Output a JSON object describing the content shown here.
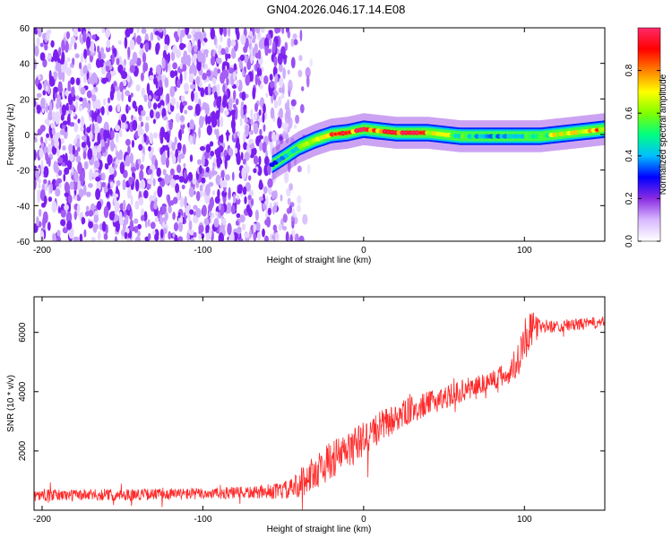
{
  "title": "GN04.2026.046.17.14.E08",
  "chart_data": [
    {
      "type": "heatmap",
      "xlabel": "Height of straight line (km)",
      "ylabel": "Frequency (Hz)",
      "xlim": [
        -205,
        150
      ],
      "ylim": [
        -60,
        60
      ],
      "xticks": [
        -200,
        -100,
        0,
        100
      ],
      "yticks": [
        -60,
        -40,
        -20,
        0,
        20,
        40,
        60
      ],
      "colorbar": {
        "label": "Normalized spectral amplitude",
        "range": [
          0,
          1
        ],
        "ticks": [
          0.0,
          0.2,
          0.4,
          0.6,
          0.8
        ],
        "colormap": [
          "#ffffff",
          "#d8b8ff",
          "#8a2be2",
          "#0000ff",
          "#00bfff",
          "#00ff80",
          "#80ff00",
          "#ffff00",
          "#ff8000",
          "#ff0000",
          "#ff2a6a"
        ]
      },
      "noise_region": {
        "x_start": -205,
        "x_end": -55,
        "fade_to_x": -30
      },
      "ridge": {
        "x": [
          -57,
          -50,
          -40,
          -30,
          -20,
          -10,
          0,
          10,
          20,
          30,
          40,
          50,
          60,
          70,
          80,
          90,
          100,
          110,
          120,
          130,
          140,
          150
        ],
        "freq": [
          -17,
          -13,
          -7,
          -3,
          0,
          1,
          3,
          2,
          1,
          1,
          1,
          0,
          -1,
          -1,
          -1,
          -1,
          -1,
          -1,
          0,
          1,
          2,
          3
        ],
        "amplitude": [
          0.35,
          0.45,
          0.55,
          0.7,
          0.85,
          0.9,
          0.95,
          0.85,
          0.95,
          0.9,
          0.8,
          0.7,
          0.55,
          0.45,
          0.45,
          0.45,
          0.5,
          0.55,
          0.7,
          0.85,
          0.8,
          0.75
        ]
      }
    },
    {
      "type": "line",
      "xlabel": "Height of straight line (km)",
      "ylabel": "SNR (10 * v/v)",
      "xlim": [
        -205,
        150
      ],
      "ylim": [
        0,
        7200
      ],
      "xticks": [
        -200,
        -100,
        0,
        100
      ],
      "yticks": [
        2000,
        4000,
        6000
      ],
      "series": [
        {
          "name": "SNR",
          "color": "#ff2a2a",
          "x": [
            -205,
            -150,
            -100,
            -60,
            -45,
            -40,
            -30,
            -20,
            -10,
            0,
            10,
            20,
            30,
            40,
            50,
            60,
            70,
            80,
            90,
            95,
            100,
            105,
            110,
            120,
            130,
            140,
            150
          ],
          "y": [
            500,
            520,
            560,
            600,
            700,
            900,
            1300,
            1700,
            2000,
            2400,
            2800,
            3100,
            3400,
            3600,
            3800,
            4000,
            4200,
            4400,
            4600,
            5000,
            5800,
            6100,
            6200,
            6200,
            6250,
            6300,
            6350
          ],
          "noise_amplitude": [
            200,
            200,
            200,
            220,
            350,
            500,
            600,
            650,
            650,
            600,
            550,
            500,
            450,
            400,
            400,
            380,
            380,
            380,
            400,
            600,
            800,
            600,
            250,
            200,
            200,
            200,
            200
          ]
        }
      ]
    }
  ]
}
